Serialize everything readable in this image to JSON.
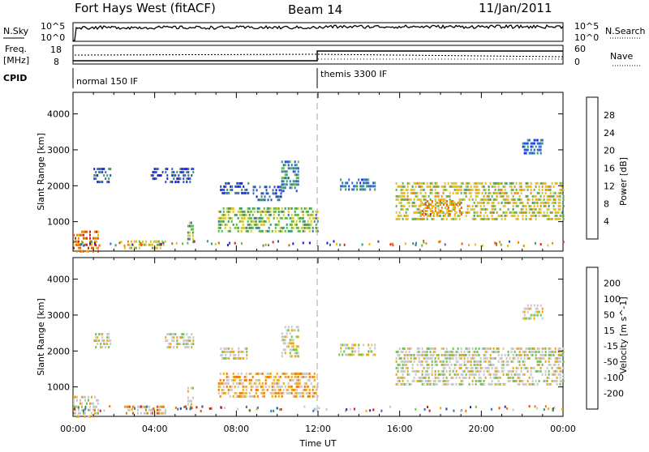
{
  "header": {
    "station": "Fort Hays West (fitACF)",
    "beam": "Beam 14",
    "date": "11/Jan/2011"
  },
  "summary": {
    "nsky_label": "N.Sky",
    "nsearch_label": "N.Search",
    "freq_label": "Freq.",
    "freq_unit": "[MHz]",
    "nave_label": "Nave",
    "cpid_label": "CPID",
    "noise_ticks_left": [
      "10^5",
      "10^0"
    ],
    "noise_ticks_right": [
      "10^5",
      "10^0"
    ],
    "freq_ticks": [
      "18",
      "8"
    ],
    "nave_ticks": [
      "60",
      "0"
    ],
    "cpid_segments": [
      {
        "start_hour": 0,
        "end_hour": 12,
        "label": "normal 150 IF"
      },
      {
        "start_hour": 12,
        "end_hour": 24,
        "label": "themis 3300 IF"
      }
    ]
  },
  "colors": {
    "power_scale": [
      "#1a1ae6",
      "#2050d0",
      "#3b6cb8",
      "#3d9670",
      "#5fb93e",
      "#d8c830",
      "#f5b800",
      "#f08a00",
      "#ee5a00",
      "#e02000"
    ],
    "velocity_scale": [
      "#1a2ee6",
      "#3070b0",
      "#3f8a5a",
      "#6cc63c",
      "#c8c8c8",
      "#c8c8c8",
      "#f5a500",
      "#f07800",
      "#ec4800",
      "#e01010"
    ]
  },
  "chart_data": [
    {
      "type": "heatmap",
      "title": "Power",
      "xlabel": "",
      "ylabel": "Slant Range [km]",
      "x_ticks": [
        "00:00",
        "04:00",
        "08:00",
        "12:00",
        "16:00",
        "20:00",
        "00:00"
      ],
      "y_ticks": [
        "1000",
        "2000",
        "3000",
        "4000"
      ],
      "xlim_hours": [
        0,
        24
      ],
      "ylim_km": [
        180,
        4600
      ],
      "colorbar_label": "Power [dB]",
      "colorbar_ticks": [
        "28",
        "24",
        "20",
        "16",
        "12",
        "8",
        "4"
      ],
      "regions": [
        {
          "t0": 0.0,
          "t1": 1.2,
          "r0": 200,
          "r1": 750,
          "val": 0.8
        },
        {
          "t0": 1.0,
          "t1": 1.8,
          "r0": 2100,
          "r1": 2500,
          "val": 0.2
        },
        {
          "t0": 3.8,
          "t1": 4.4,
          "r0": 2200,
          "r1": 2500,
          "val": 0.15
        },
        {
          "t0": 4.5,
          "t1": 5.9,
          "r0": 2100,
          "r1": 2500,
          "val": 0.2
        },
        {
          "t0": 5.6,
          "t1": 5.9,
          "r0": 500,
          "r1": 1000,
          "val": 0.4
        },
        {
          "t0": 7.1,
          "t1": 12.0,
          "r0": 700,
          "r1": 1400,
          "val": 0.45
        },
        {
          "t0": 7.2,
          "t1": 8.6,
          "r0": 1800,
          "r1": 2100,
          "val": 0.2
        },
        {
          "t0": 8.8,
          "t1": 10.2,
          "r0": 1600,
          "r1": 2000,
          "val": 0.2
        },
        {
          "t0": 10.2,
          "t1": 11.0,
          "r0": 1800,
          "r1": 2700,
          "val": 0.3
        },
        {
          "t0": 2.5,
          "t1": 4.5,
          "r0": 250,
          "r1": 480,
          "val": 0.6
        },
        {
          "t0": 13.0,
          "t1": 14.8,
          "r0": 1900,
          "r1": 2200,
          "val": 0.25
        },
        {
          "t0": 15.8,
          "t1": 24.0,
          "r0": 1100,
          "r1": 2100,
          "val": 0.55
        },
        {
          "t0": 17.0,
          "t1": 19.0,
          "r0": 1200,
          "r1": 1600,
          "val": 0.75
        },
        {
          "t0": 22.0,
          "t1": 23.0,
          "r0": 2900,
          "r1": 3300,
          "val": 0.2
        }
      ]
    },
    {
      "type": "heatmap",
      "title": "Velocity",
      "xlabel": "Time UT",
      "ylabel": "Slant Range [km]",
      "x_ticks": [
        "00:00",
        "04:00",
        "08:00",
        "12:00",
        "16:00",
        "20:00",
        "00:00"
      ],
      "y_ticks": [
        "1000",
        "2000",
        "3000",
        "4000"
      ],
      "xlim_hours": [
        0,
        24
      ],
      "ylim_km": [
        180,
        4600
      ],
      "colorbar_label": "Velocity [m s^-1]",
      "colorbar_ticks": [
        "200",
        "100",
        "50",
        "15",
        "-15",
        "-50",
        "-100",
        "-200"
      ],
      "regions": [
        {
          "t0": 0.0,
          "t1": 1.2,
          "r0": 200,
          "r1": 750,
          "val": 0.5
        },
        {
          "t0": 1.0,
          "t1": 1.8,
          "r0": 2100,
          "r1": 2500,
          "val": 0.5
        },
        {
          "t0": 4.5,
          "t1": 5.9,
          "r0": 2100,
          "r1": 2500,
          "val": 0.5
        },
        {
          "t0": 5.6,
          "t1": 5.9,
          "r0": 500,
          "r1": 1000,
          "val": 0.5
        },
        {
          "t0": 7.1,
          "t1": 12.0,
          "r0": 700,
          "r1": 1400,
          "val": 0.62
        },
        {
          "t0": 7.2,
          "t1": 8.6,
          "r0": 1800,
          "r1": 2100,
          "val": 0.5
        },
        {
          "t0": 10.2,
          "t1": 11.0,
          "r0": 1800,
          "r1": 2700,
          "val": 0.5
        },
        {
          "t0": 2.5,
          "t1": 4.5,
          "r0": 250,
          "r1": 480,
          "val": 0.65
        },
        {
          "t0": 13.0,
          "t1": 14.8,
          "r0": 1900,
          "r1": 2200,
          "val": 0.5
        },
        {
          "t0": 15.8,
          "t1": 24.0,
          "r0": 1100,
          "r1": 2100,
          "val": 0.5
        },
        {
          "t0": 22.0,
          "t1": 23.0,
          "r0": 2900,
          "r1": 3300,
          "val": 0.5
        }
      ]
    }
  ]
}
